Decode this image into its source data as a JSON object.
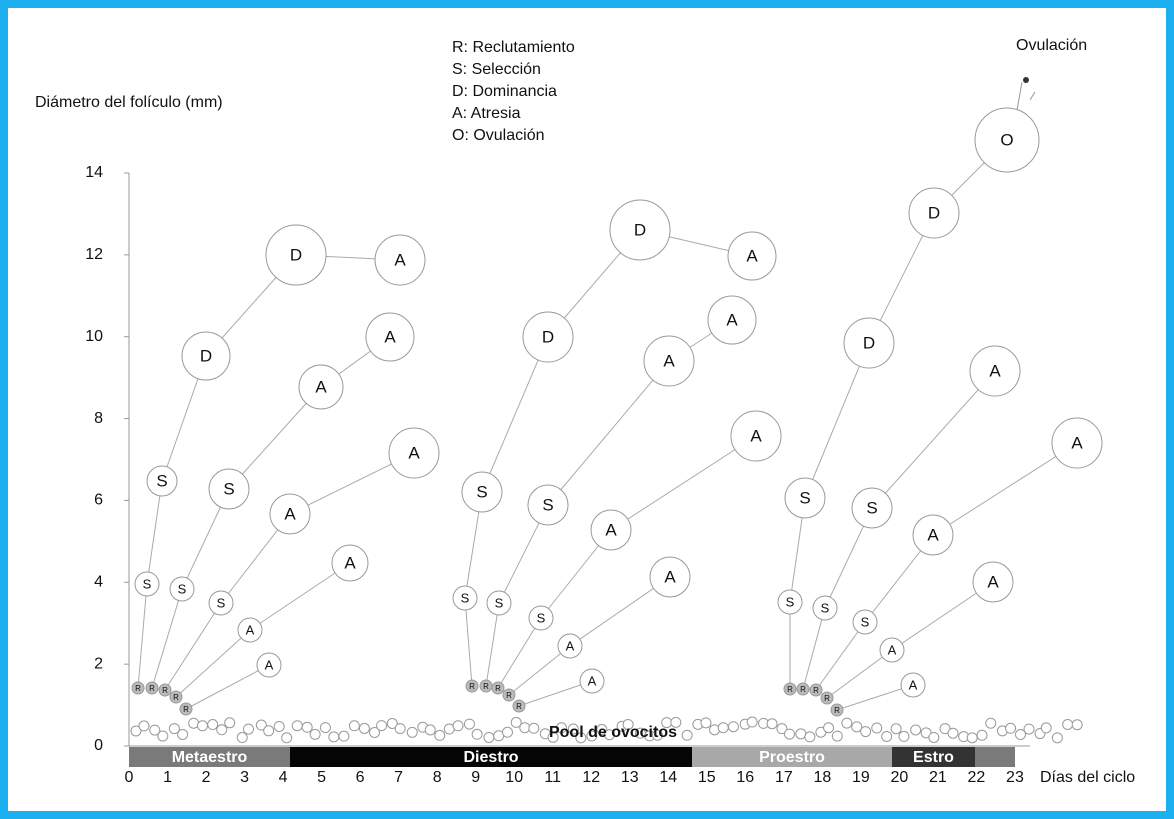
{
  "legend": [
    "R: Reclutamiento",
    "S: Selección",
    "D: Dominancia",
    "A: Atresia",
    "O: Ovulación"
  ],
  "y_axis_label": "Diámetro del folículo (mm)",
  "yticks": [
    0,
    2,
    4,
    6,
    8,
    10,
    12,
    14
  ],
  "xticks": [
    0,
    1,
    2,
    3,
    4,
    5,
    6,
    7,
    8,
    9,
    10,
    11,
    12,
    13,
    14,
    15,
    16,
    17,
    18,
    19,
    20,
    21,
    22,
    23
  ],
  "x_axis_label": "Días del ciclo",
  "pool_label": "Pool de ovocitos",
  "ovulation_label": "Ovulación",
  "phases": [
    "Metaestro",
    "Diestro",
    "Proestro",
    "Estro"
  ],
  "nodes": [
    {
      "label": "R"
    },
    {
      "label": "S"
    },
    {
      "label": "S"
    },
    {
      "label": "D"
    },
    {
      "label": "D"
    },
    {
      "label": "A"
    },
    {
      "label": "R"
    },
    {
      "label": "S"
    },
    {
      "label": "S"
    },
    {
      "label": "A"
    },
    {
      "label": "A"
    },
    {
      "label": "R"
    },
    {
      "label": "S"
    },
    {
      "label": "A"
    },
    {
      "label": "A"
    },
    {
      "label": "R"
    },
    {
      "label": "A"
    },
    {
      "label": "A"
    },
    {
      "label": "R"
    },
    {
      "label": "A"
    },
    {
      "label": "R"
    },
    {
      "label": "S"
    },
    {
      "label": "S"
    },
    {
      "label": "D"
    },
    {
      "label": "D"
    },
    {
      "label": "A"
    },
    {
      "label": "R"
    },
    {
      "label": "S"
    },
    {
      "label": "S"
    },
    {
      "label": "A"
    },
    {
      "label": "A"
    },
    {
      "label": "R"
    },
    {
      "label": "S"
    },
    {
      "label": "A"
    },
    {
      "label": "A"
    },
    {
      "label": "R"
    },
    {
      "label": "A"
    },
    {
      "label": "A"
    },
    {
      "label": "R"
    },
    {
      "label": "A"
    },
    {
      "label": "R"
    },
    {
      "label": "S"
    },
    {
      "label": "S"
    },
    {
      "label": "D"
    },
    {
      "label": "D"
    },
    {
      "label": "O"
    },
    {
      "label": "R"
    },
    {
      "label": "S"
    },
    {
      "label": "S"
    },
    {
      "label": "A"
    },
    {
      "label": "R"
    },
    {
      "label": "S"
    },
    {
      "label": "A"
    },
    {
      "label": "A"
    },
    {
      "label": "R"
    },
    {
      "label": "A"
    },
    {
      "label": "A"
    },
    {
      "label": "R"
    },
    {
      "label": "A"
    }
  ]
}
